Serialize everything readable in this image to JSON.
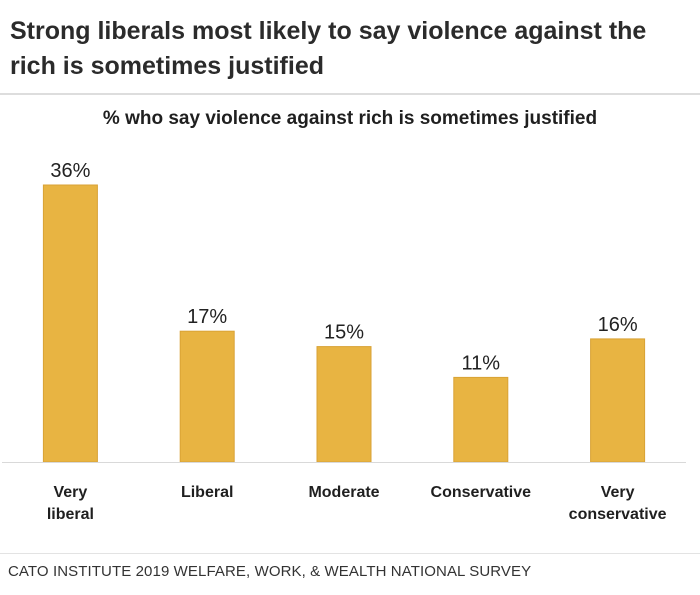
{
  "headline": "Strong liberals most likely to say violence against the rich is sometimes justified",
  "source": "CATO INSTITUTE 2019 WELFARE, WORK, & WEALTH NATIONAL SURVEY",
  "colors": {
    "bar": "#E8B442",
    "bar_edge": "#D9A235",
    "baseline": "#D9D9D9"
  },
  "chart_data": {
    "type": "bar",
    "title": "% who say violence against rich is sometimes justified",
    "categories": [
      "Very\nliberal",
      "Liberal",
      "Moderate",
      "Conservative",
      "Very\nconservative"
    ],
    "values": [
      36,
      17,
      15,
      11,
      16
    ],
    "value_labels": [
      "36%",
      "17%",
      "15%",
      "11%",
      "16%"
    ],
    "ylim": [
      0,
      36
    ],
    "grid": false,
    "legend": "none"
  }
}
